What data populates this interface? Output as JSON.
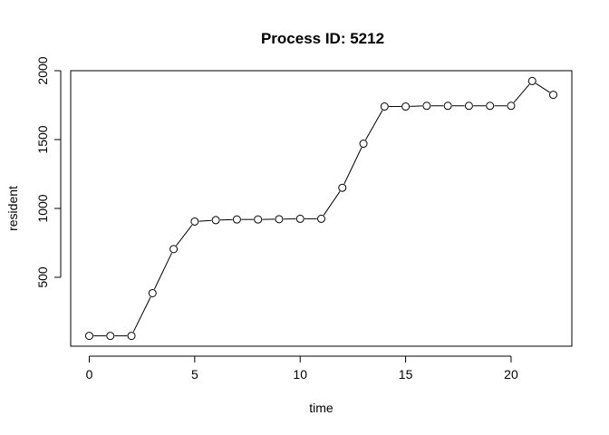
{
  "chart_data": {
    "type": "line",
    "title": "Process ID: 5212",
    "xlabel": "time",
    "ylabel": "resident",
    "xlim": [
      -0.88,
      22.88
    ],
    "ylim": [
      0,
      2000
    ],
    "xticks": [
      0,
      5,
      10,
      15,
      20
    ],
    "yticks": [
      500,
      1000,
      1500,
      2000
    ],
    "grid": false,
    "markers": "open-circle",
    "x": [
      0,
      1,
      2,
      3,
      4,
      5,
      6,
      7,
      8,
      9,
      10,
      11,
      12,
      13,
      14,
      15,
      16,
      17,
      18,
      19,
      20,
      21,
      22
    ],
    "values": [
      75,
      75,
      75,
      385,
      705,
      905,
      915,
      920,
      920,
      922,
      925,
      925,
      1150,
      1470,
      1740,
      1740,
      1745,
      1745,
      1745,
      1745,
      1745,
      1925,
      1825
    ],
    "colors": {
      "line": "#000000",
      "marker": "#000000"
    }
  }
}
